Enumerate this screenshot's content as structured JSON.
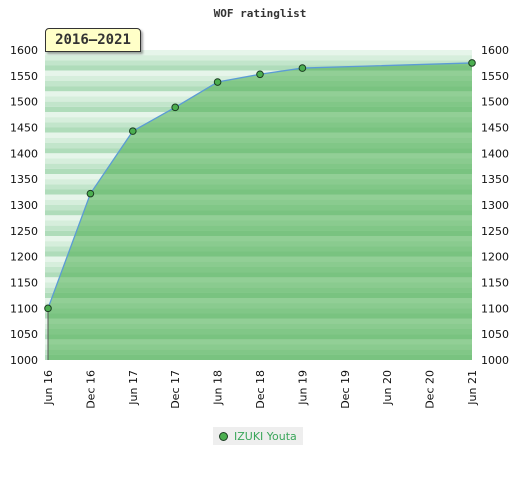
{
  "title": "WOF ratinglist",
  "period_label": "2016–2021",
  "chart_data": {
    "type": "area",
    "title": "WOF ratinglist",
    "xlabel": "",
    "ylabel": "",
    "x_ticks": [
      "Jun 16",
      "Dec 16",
      "Jun 17",
      "Dec 17",
      "Jun 18",
      "Dec 18",
      "Jun 19",
      "Dec 19",
      "Jun 20",
      "Dec 20",
      "Jun 21"
    ],
    "ylim": [
      1000,
      1600
    ],
    "y_ticks": [
      1000,
      1050,
      1100,
      1150,
      1200,
      1250,
      1300,
      1350,
      1400,
      1450,
      1500,
      1550,
      1600
    ],
    "legend_position": "bottom-center",
    "series": [
      {
        "name": "IZUKI Youta",
        "color": "#4caf50",
        "line_color": "#5b9bd5",
        "x": [
          "Jun 16",
          "Dec 16",
          "Jun 17",
          "Dec 17",
          "Jun 18",
          "Dec 18",
          "Jun 19",
          "Jun 21"
        ],
        "values": [
          1100,
          1322,
          1443,
          1489,
          1538,
          1553,
          1565,
          1575
        ]
      }
    ]
  },
  "legend": {
    "label": "IZUKI Youta"
  }
}
